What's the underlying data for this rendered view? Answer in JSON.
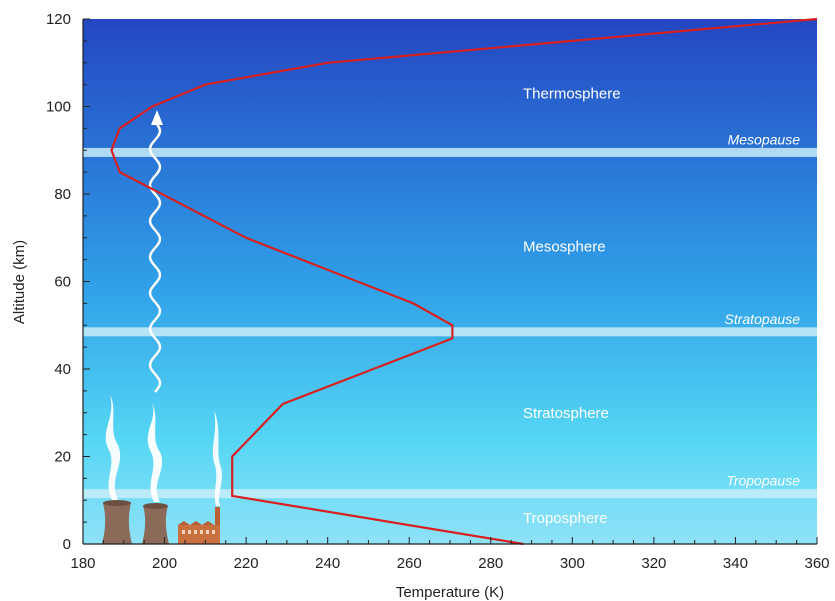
{
  "colors": {
    "sky_top": "#2446c2",
    "sky_mid": "#2f9fe8",
    "sky_bottom": "#8fe2f7",
    "profile_line": "#d8201f",
    "boundary_band": "#c8ecf8",
    "axis": "#222222",
    "factory": "#c8713f",
    "tower": "#8c6a5a"
  },
  "chart_data": {
    "type": "line",
    "title": "",
    "xlabel": "Temperature (K)",
    "ylabel": "Altitude (km)",
    "xlim": [
      180,
      360
    ],
    "ylim": [
      0,
      120
    ],
    "x_ticks": [
      180,
      200,
      220,
      240,
      260,
      280,
      300,
      320,
      340,
      360
    ],
    "y_ticks": [
      0,
      20,
      40,
      60,
      80,
      100,
      120
    ],
    "x_tick_labels": [
      "180",
      "200",
      "220",
      "240",
      "260",
      "280",
      "300",
      "320",
      "340",
      "360"
    ],
    "y_tick_labels": [
      "0",
      "20",
      "40",
      "60",
      "80",
      "100",
      "120"
    ],
    "grid": false,
    "series": [
      {
        "color": "#d8201f",
        "points": [
          {
            "x": 288,
            "y": 0
          },
          {
            "x": 216.6,
            "y": 11
          },
          {
            "x": 216.6,
            "y": 20
          },
          {
            "x": 229,
            "y": 32
          },
          {
            "x": 270.6,
            "y": 47
          },
          {
            "x": 270.6,
            "y": 50
          },
          {
            "x": 261,
            "y": 55
          },
          {
            "x": 220,
            "y": 70
          },
          {
            "x": 189,
            "y": 85
          },
          {
            "x": 187,
            "y": 90
          },
          {
            "x": 189,
            "y": 95
          },
          {
            "x": 197,
            "y": 100
          },
          {
            "x": 210,
            "y": 105
          },
          {
            "x": 240,
            "y": 110
          },
          {
            "x": 300,
            "y": 115
          },
          {
            "x": 360,
            "y": 120
          }
        ]
      }
    ],
    "layers": [
      {
        "name": "Troposphere",
        "y": 6
      },
      {
        "name": "Stratosphere",
        "y": 30
      },
      {
        "name": "Mesosphere",
        "y": 68
      },
      {
        "name": "Thermosphere",
        "y": 103
      }
    ],
    "boundaries": [
      {
        "name": "Tropopause",
        "y": 11.5
      },
      {
        "name": "Stratopause",
        "y": 48.5
      },
      {
        "name": "Mesopause",
        "y": 89.5
      }
    ]
  }
}
